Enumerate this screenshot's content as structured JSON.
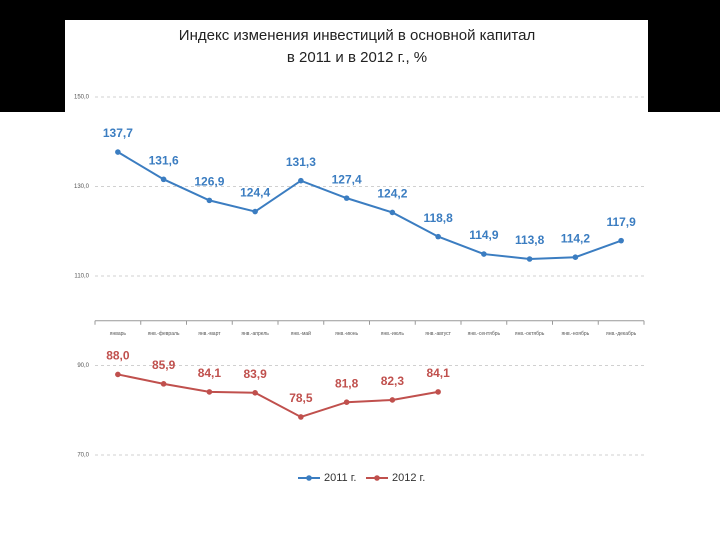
{
  "chart_data": {
    "type": "line",
    "title": [
      "Индекс изменения инвестиций в основной капитал",
      "в 2011 и в 2012 г., %"
    ],
    "categories": [
      "январь",
      "янв.-февраль",
      "янв.-март",
      "янв.-апрель",
      "янв.-май",
      "янв.-июнь",
      "янв.-июль",
      "янв.-август",
      "янв.-сентябрь",
      "янв.-октябрь",
      "янв.-ноябрь",
      "янв.-декабрь"
    ],
    "series": [
      {
        "name": "2011 г.",
        "color": "#3b7dc1",
        "values": [
          137.7,
          131.6,
          126.9,
          124.4,
          131.3,
          127.4,
          124.2,
          118.8,
          114.9,
          113.8,
          114.2,
          117.9
        ],
        "value_labels": [
          "137,7",
          "131,6",
          "126,9",
          "124,4",
          "131,3",
          "127,4",
          "124,2",
          "118,8",
          "114,9",
          "113,8",
          "114,2",
          "117,9"
        ]
      },
      {
        "name": "2012 г.",
        "color": "#c0504d",
        "values": [
          88.0,
          85.9,
          84.1,
          83.9,
          78.5,
          81.8,
          82.3,
          84.1,
          null,
          null,
          null,
          null
        ],
        "value_labels": [
          "88,0",
          "85,9",
          "84,1",
          "83,9",
          "78,5",
          "81,8",
          "82,3",
          "84,1",
          null,
          null,
          null,
          null
        ]
      }
    ],
    "ylim": [
      70,
      150
    ],
    "yticks": [
      {
        "value": 70,
        "label": "70,0"
      },
      {
        "value": 90,
        "label": "90,0"
      },
      {
        "value": 110,
        "label": "110,0"
      },
      {
        "value": 130,
        "label": "130,0"
      },
      {
        "value": 150,
        "label": "150,0"
      }
    ],
    "x_axis_crosses": 100,
    "grid": true,
    "legend": "bottom"
  }
}
